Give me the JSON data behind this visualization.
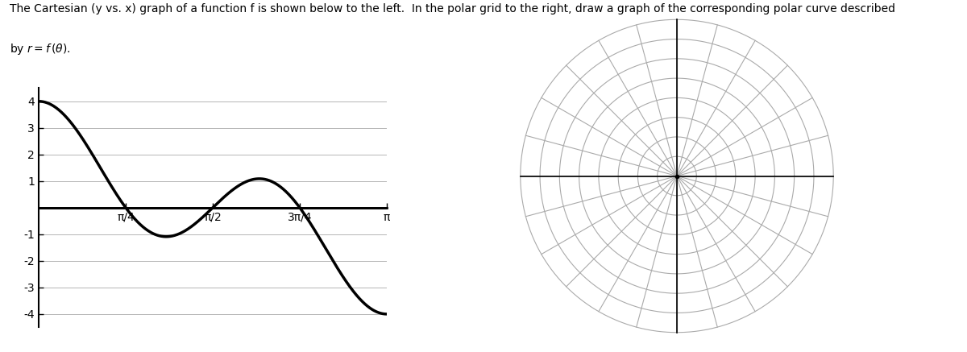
{
  "title_line1": "The Cartesian (y vs. x) graph of a function f is shown below to the left.  In the polar grid to the right, draw a graph of the corresponding polar curve described",
  "title_line2": "by r = f (θ).",
  "cartesian_xlim": [
    0,
    3.14159265
  ],
  "cartesian_ylim": [
    -4.5,
    4.5
  ],
  "cartesian_yticks": [
    -4,
    -3,
    -2,
    -1,
    0,
    1,
    2,
    3,
    4
  ],
  "cartesian_xticks_vals": [
    0.7853981633974483,
    1.5707963267948966,
    2.356194490192345,
    3.141592653589793
  ],
  "cartesian_xtick_labels": [
    "π/4",
    "π/2",
    "3π/4",
    "π"
  ],
  "polar_n_circles": 8,
  "polar_n_lines": 24,
  "polar_max_r": 4.0,
  "bg_color": "#ffffff",
  "curve_color": "#000000",
  "grid_color": "#aaaaaa",
  "axis_color": "#000000",
  "cartesian_linewidth": 2.5,
  "polar_linewidth": 0.8,
  "zero_line_linewidth": 2.0
}
